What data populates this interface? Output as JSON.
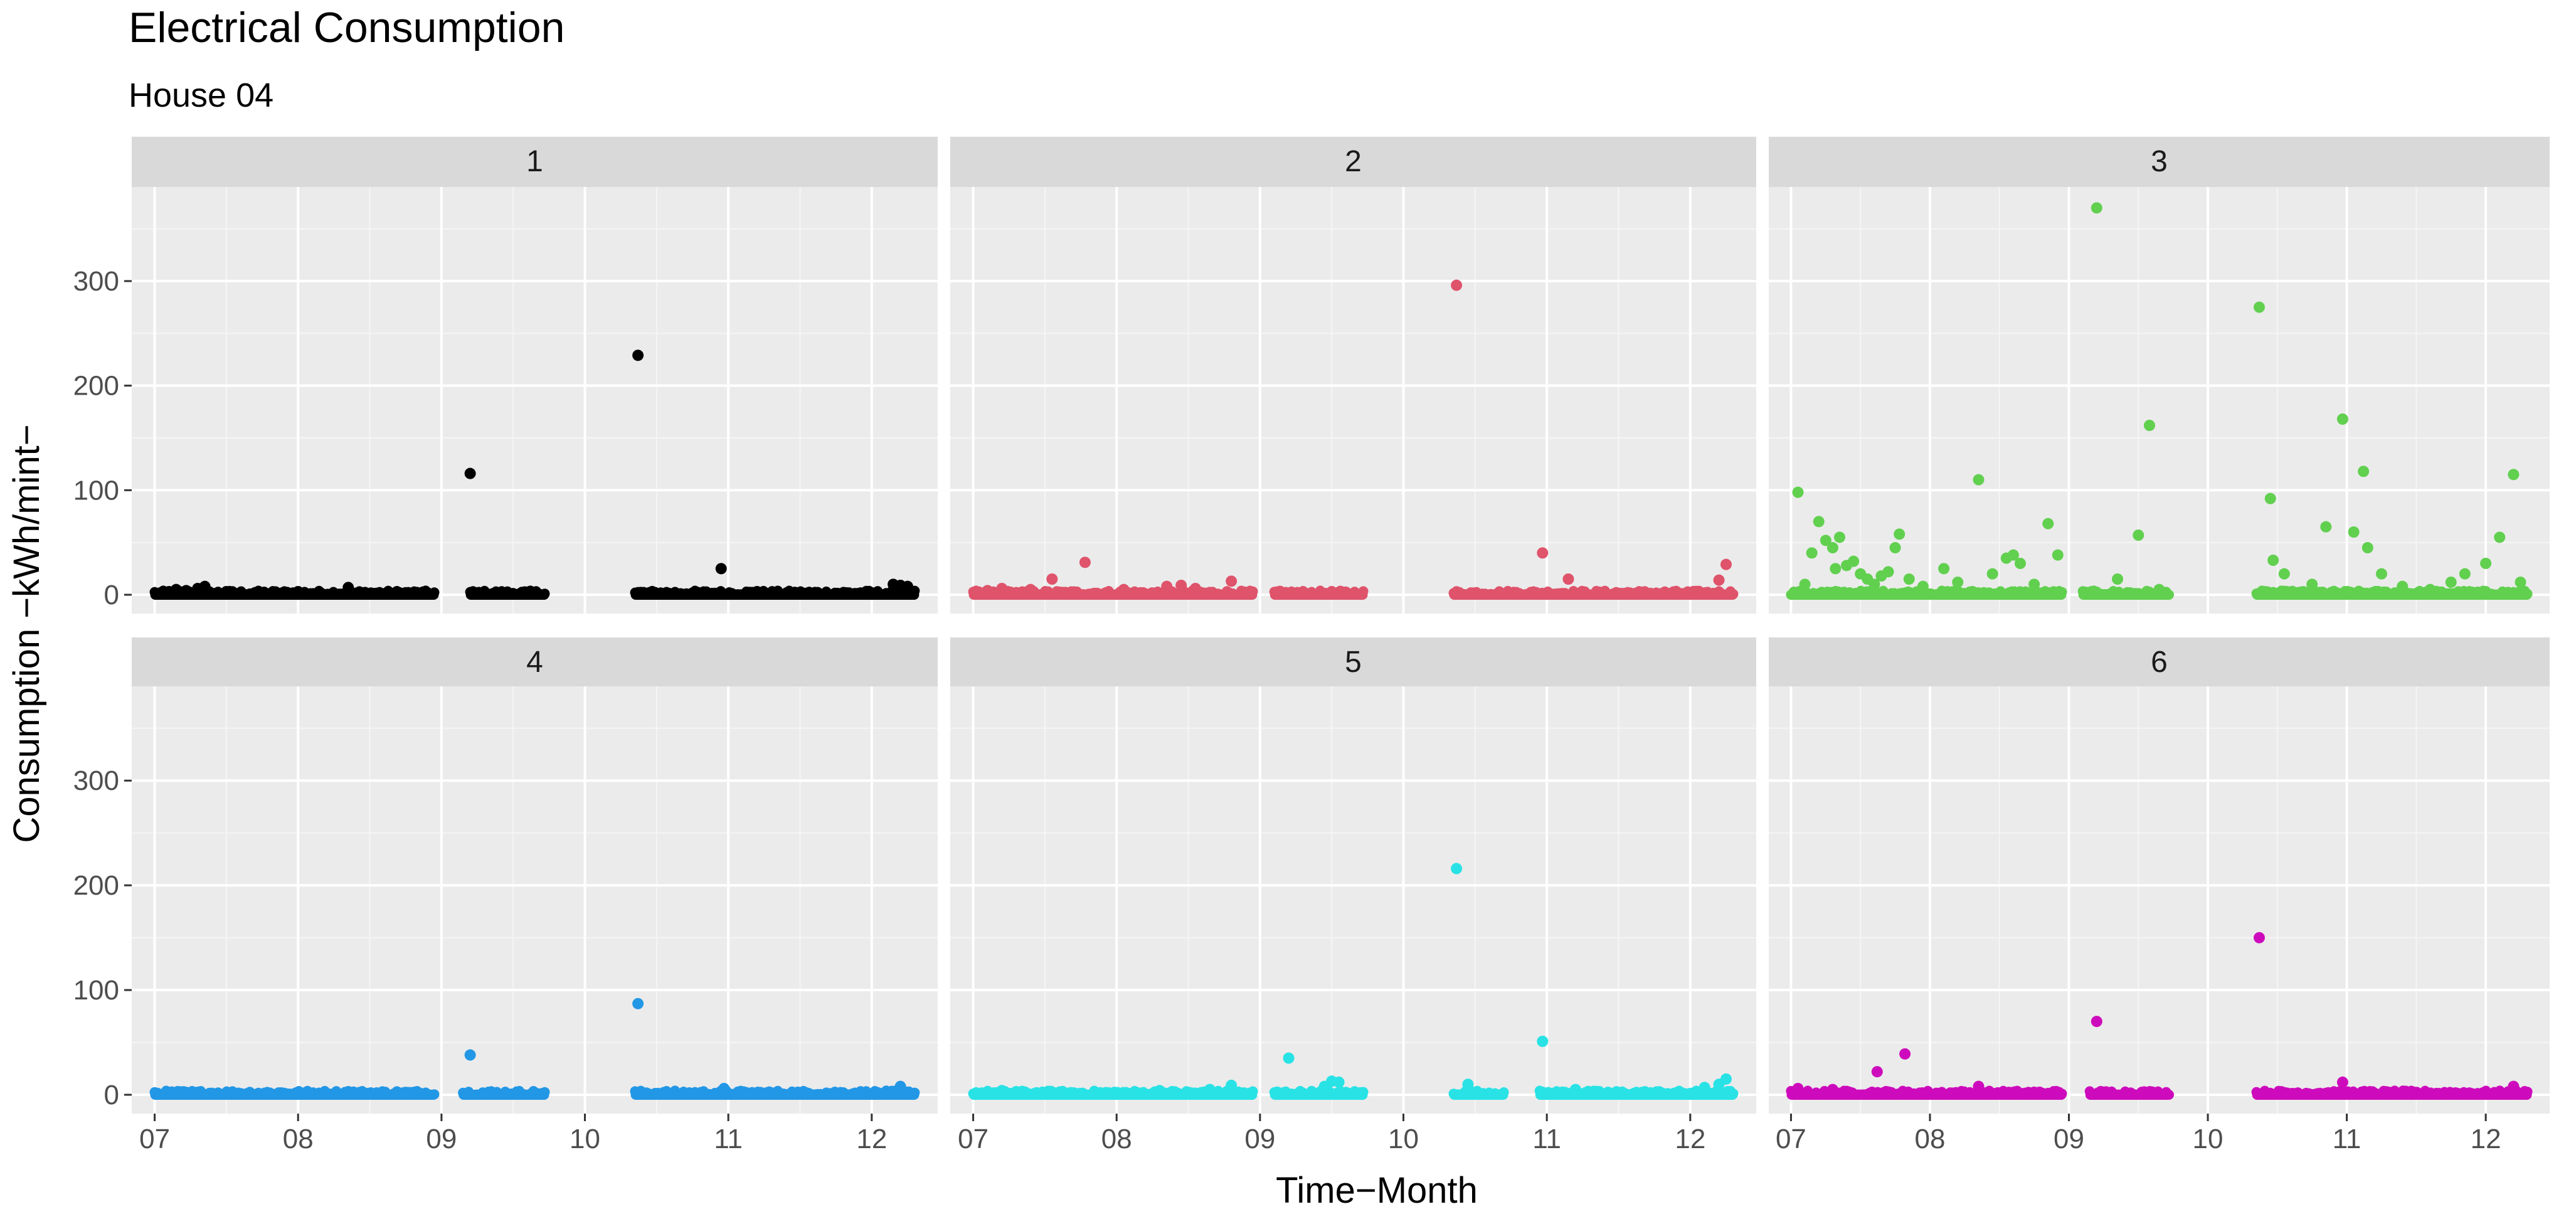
{
  "chart_data": {
    "type": "scatter",
    "title": "Electrical Consumption",
    "subtitle": "House 04",
    "xlabel": "Time−Month",
    "ylabel": "Consumption −kWh/mint−",
    "xlim": [
      6.84,
      12.46
    ],
    "ylim": [
      -18,
      390
    ],
    "x_ticks": [
      7,
      8,
      9,
      10,
      11,
      12
    ],
    "x_tick_labels": [
      "07",
      "08",
      "09",
      "10",
      "11",
      "12"
    ],
    "y_ticks": [
      0,
      100,
      200,
      300
    ],
    "y_tick_labels": [
      "0",
      "100",
      "200",
      "300"
    ],
    "grid": true,
    "facet_layout": "2 rows x 3 columns",
    "panels": [
      {
        "label": "1",
        "color": "#000000",
        "coverage": [
          [
            7.0,
            8.95
          ],
          [
            9.2,
            9.72
          ],
          [
            10.35,
            12.3
          ]
        ],
        "points": [
          [
            7.1,
            3
          ],
          [
            7.15,
            5
          ],
          [
            7.22,
            4
          ],
          [
            7.3,
            6
          ],
          [
            7.35,
            8
          ],
          [
            7.5,
            3
          ],
          [
            7.7,
            2
          ],
          [
            8.0,
            3
          ],
          [
            8.35,
            7
          ],
          [
            9.2,
            116
          ],
          [
            10.37,
            229
          ],
          [
            10.95,
            25
          ],
          [
            11.2,
            3
          ],
          [
            12.15,
            10
          ],
          [
            12.2,
            9
          ],
          [
            12.25,
            8
          ]
        ]
      },
      {
        "label": "2",
        "color": "#DF536B",
        "coverage": [
          [
            7.0,
            8.95
          ],
          [
            9.1,
            9.72
          ],
          [
            10.35,
            12.3
          ]
        ],
        "points": [
          [
            7.1,
            4
          ],
          [
            7.2,
            6
          ],
          [
            7.3,
            2
          ],
          [
            7.4,
            5
          ],
          [
            7.55,
            15
          ],
          [
            7.78,
            31
          ],
          [
            8.05,
            5
          ],
          [
            8.35,
            8
          ],
          [
            8.45,
            9
          ],
          [
            8.55,
            6
          ],
          [
            8.8,
            13
          ],
          [
            10.37,
            296
          ],
          [
            10.97,
            40
          ],
          [
            11.15,
            15
          ],
          [
            12.2,
            14
          ],
          [
            12.25,
            29
          ]
        ]
      },
      {
        "label": "3",
        "color": "#61D04F",
        "coverage": [
          [
            7.0,
            8.95
          ],
          [
            9.1,
            9.72
          ],
          [
            10.35,
            12.3
          ]
        ],
        "points": [
          [
            7.05,
            98
          ],
          [
            7.1,
            10
          ],
          [
            7.15,
            40
          ],
          [
            7.2,
            70
          ],
          [
            7.25,
            52
          ],
          [
            7.3,
            45
          ],
          [
            7.32,
            25
          ],
          [
            7.35,
            55
          ],
          [
            7.4,
            28
          ],
          [
            7.45,
            32
          ],
          [
            7.5,
            20
          ],
          [
            7.55,
            15
          ],
          [
            7.6,
            10
          ],
          [
            7.65,
            18
          ],
          [
            7.7,
            22
          ],
          [
            7.75,
            45
          ],
          [
            7.78,
            58
          ],
          [
            7.85,
            15
          ],
          [
            7.95,
            8
          ],
          [
            8.1,
            25
          ],
          [
            8.2,
            12
          ],
          [
            8.35,
            110
          ],
          [
            8.45,
            20
          ],
          [
            8.55,
            35
          ],
          [
            8.6,
            38
          ],
          [
            8.65,
            30
          ],
          [
            8.75,
            10
          ],
          [
            8.85,
            68
          ],
          [
            8.92,
            38
          ],
          [
            9.2,
            370
          ],
          [
            9.35,
            15
          ],
          [
            9.5,
            57
          ],
          [
            9.58,
            162
          ],
          [
            9.65,
            5
          ],
          [
            10.37,
            275
          ],
          [
            10.45,
            92
          ],
          [
            10.47,
            33
          ],
          [
            10.55,
            20
          ],
          [
            10.75,
            10
          ],
          [
            10.85,
            65
          ],
          [
            10.97,
            168
          ],
          [
            11.05,
            60
          ],
          [
            11.12,
            118
          ],
          [
            11.15,
            45
          ],
          [
            11.25,
            20
          ],
          [
            11.4,
            8
          ],
          [
            11.6,
            5
          ],
          [
            11.75,
            12
          ],
          [
            11.85,
            20
          ],
          [
            12.0,
            30
          ],
          [
            12.1,
            55
          ],
          [
            12.2,
            115
          ],
          [
            12.25,
            12
          ]
        ]
      },
      {
        "label": "4",
        "color": "#2297E6",
        "coverage": [
          [
            7.0,
            8.95
          ],
          [
            9.15,
            9.72
          ],
          [
            10.35,
            12.3
          ]
        ],
        "points": [
          [
            8.35,
            3
          ],
          [
            9.2,
            38
          ],
          [
            10.37,
            87
          ],
          [
            10.97,
            6
          ],
          [
            12.2,
            8
          ]
        ]
      },
      {
        "label": "5",
        "color": "#28E2E5",
        "coverage": [
          [
            7.0,
            8.95
          ],
          [
            9.1,
            9.72
          ],
          [
            10.35,
            10.7
          ],
          [
            10.95,
            12.3
          ]
        ],
        "points": [
          [
            7.2,
            4
          ],
          [
            7.3,
            3
          ],
          [
            7.5,
            2
          ],
          [
            8.3,
            4
          ],
          [
            8.65,
            5
          ],
          [
            8.8,
            9
          ],
          [
            9.2,
            35
          ],
          [
            9.45,
            8
          ],
          [
            9.5,
            13
          ],
          [
            9.55,
            12
          ],
          [
            10.37,
            216
          ],
          [
            10.45,
            10
          ],
          [
            10.97,
            51
          ],
          [
            11.2,
            5
          ],
          [
            12.1,
            7
          ],
          [
            12.2,
            10
          ],
          [
            12.25,
            15
          ]
        ]
      },
      {
        "label": "6",
        "color": "#CD0BBC",
        "coverage": [
          [
            7.0,
            8.95
          ],
          [
            9.15,
            9.72
          ],
          [
            10.35,
            12.3
          ]
        ],
        "points": [
          [
            7.05,
            6
          ],
          [
            7.3,
            5
          ],
          [
            7.62,
            22
          ],
          [
            7.82,
            39
          ],
          [
            8.35,
            8
          ],
          [
            9.2,
            70
          ],
          [
            10.37,
            150
          ],
          [
            10.97,
            12
          ],
          [
            12.2,
            8
          ]
        ]
      }
    ]
  }
}
